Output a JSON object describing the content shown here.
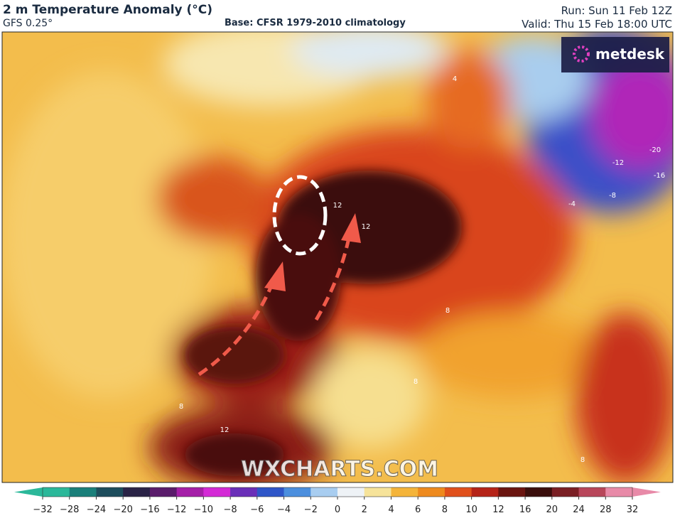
{
  "header": {
    "title": "2 m Temperature Anomaly (°C)",
    "model": "GFS 0.25°",
    "base": "Base: CFSR 1979-2010 climatology",
    "run": "Run: Sun 11 Feb 12Z",
    "valid": "Valid: Thu 15 Feb 18:00 UTC"
  },
  "logo": "metdesk",
  "watermark": "WXCHARTS.COM",
  "colorbar": {
    "labels": [
      "−32",
      "−28",
      "−24",
      "−20",
      "−16",
      "−12",
      "−10",
      "−8",
      "−6",
      "−4",
      "−2",
      "0",
      "2",
      "4",
      "6",
      "8",
      "10",
      "12",
      "16",
      "20",
      "24",
      "28",
      "32"
    ],
    "colors": [
      "#2bb89a",
      "#1a7f7a",
      "#1d4d5c",
      "#2a2346",
      "#5a1c6b",
      "#a51fa8",
      "#d42ad6",
      "#6a2fb8",
      "#2f56c8",
      "#4c8fde",
      "#a8cdf0",
      "#eef2f6",
      "#f6e39a",
      "#f4b43a",
      "#ee8a1e",
      "#e0501c",
      "#b52318",
      "#6a1410",
      "#3a0e0c",
      "#7a1f24",
      "#b8465a",
      "#e88aa8"
    ]
  },
  "contour_labels": [
    "12",
    "12",
    "12",
    "-12",
    "-16",
    "-20",
    "-8",
    "-4",
    "8",
    "8",
    "8",
    "8",
    "4"
  ]
}
